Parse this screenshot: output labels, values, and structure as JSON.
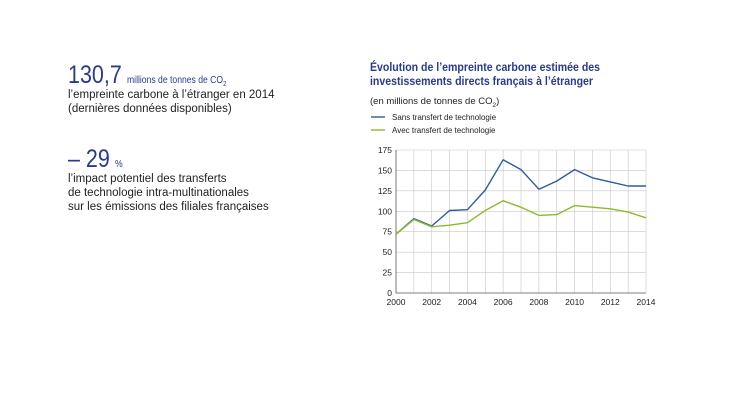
{
  "kpis": [
    {
      "value": "130,7",
      "unit": "millions de tonnes de CO",
      "unit_sub": "2",
      "desc_lines": [
        "l’empreinte carbone à l’étranger en 2014",
        "(dernières données disponibles)"
      ]
    },
    {
      "value": "– 29",
      "unit": "%",
      "unit_sub": "",
      "desc_lines": [
        "l’impact potentiel des transferts",
        "de technologie intra-multinationales",
        "sur les émissions des filiales françaises"
      ]
    }
  ],
  "chart_data": {
    "type": "line",
    "title": "Évolution de l’empreinte carbone estimée des investissements directs français à l’étranger",
    "unit_label": "(en millions de tonnes de CO",
    "unit_sub": "2",
    "unit_close": ")",
    "x": [
      2000,
      2001,
      2002,
      2003,
      2004,
      2005,
      2006,
      2007,
      2008,
      2009,
      2010,
      2011,
      2012,
      2013,
      2014
    ],
    "xticks": [
      2000,
      2002,
      2004,
      2006,
      2008,
      2010,
      2012,
      2014
    ],
    "ylim": [
      0,
      175
    ],
    "yticks": [
      0,
      25,
      50,
      75,
      100,
      125,
      150,
      175
    ],
    "grid": true,
    "legend_position": "top-left",
    "series": [
      {
        "name": "Sans transfert de technologie",
        "color": "#2e5c9a",
        "values": [
          72,
          91,
          82,
          101,
          102,
          126,
          163,
          151,
          127,
          137,
          151,
          141,
          136,
          131,
          131
        ]
      },
      {
        "name": "Avec transfert de technologie",
        "color": "#8bbb2a",
        "values": [
          72,
          90,
          81,
          83,
          86,
          101,
          113,
          105,
          95,
          96,
          107,
          105,
          103,
          99,
          92
        ]
      }
    ]
  }
}
